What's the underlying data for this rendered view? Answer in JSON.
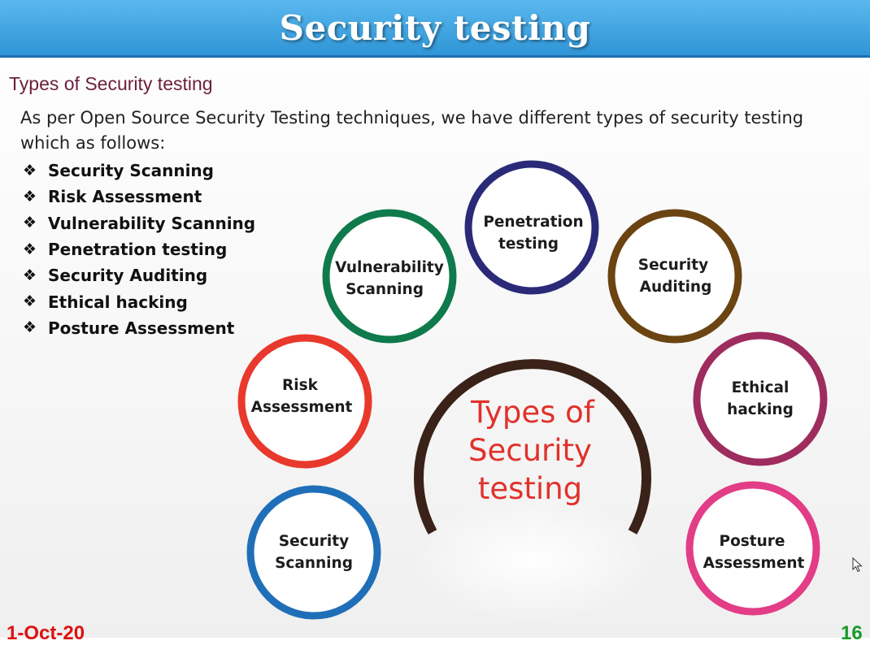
{
  "slide": {
    "title": "Security testing",
    "subtitle": "Types of Security testing",
    "intro": "As per Open Source Security Testing techniques, we have different types of security testing which as follows:",
    "bullet_icon": "four-diamond-bullet-icon",
    "bullets": [
      "Security Scanning",
      "Risk Assessment",
      "Vulnerability Scanning",
      "Penetration testing",
      "Security Auditing",
      "Ethical hacking",
      "Posture Assessment"
    ]
  },
  "diagram": {
    "center": [
      "Types of",
      "Security",
      "testing"
    ],
    "nodes": [
      {
        "lines": [
          "Security",
          "Scanning"
        ],
        "color": "#1f6fb8"
      },
      {
        "lines": [
          "Risk",
          "Assessment"
        ],
        "color": "#e8392c"
      },
      {
        "lines": [
          "Vulnerability",
          "Scanning"
        ],
        "color": "#0f7a4b"
      },
      {
        "lines": [
          "Penetration",
          "testing"
        ],
        "color": "#2a2a78"
      },
      {
        "lines": [
          "Security",
          "Auditing"
        ],
        "color": "#6b4412"
      },
      {
        "lines": [
          "Ethical",
          "hacking"
        ],
        "color": "#9e2c5e"
      },
      {
        "lines": [
          "Posture",
          "Assessment"
        ],
        "color": "#e23d86"
      }
    ],
    "arc_color": "#3a2218",
    "center_text_color": "#e0322b"
  },
  "footer": {
    "date": "1-Oct-20",
    "page": "16"
  },
  "colors": {
    "title_bar": "#3fa5e3",
    "subtitle": "#6b1f3c"
  }
}
